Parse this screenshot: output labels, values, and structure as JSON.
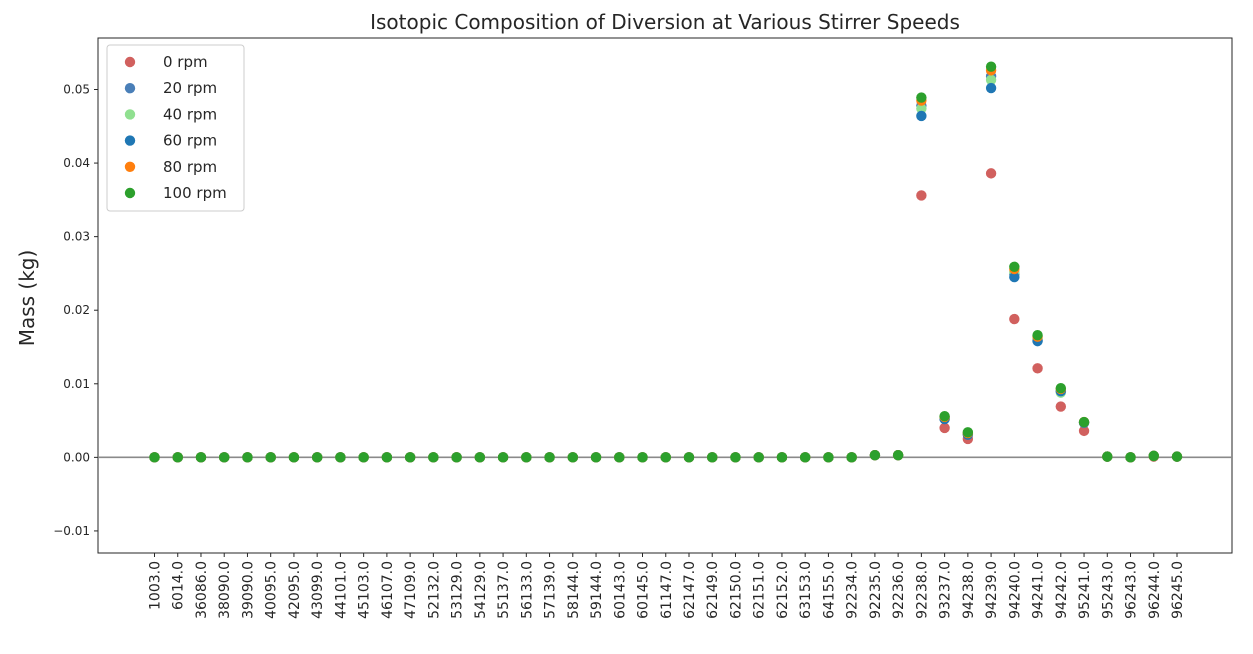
{
  "chart_data": {
    "type": "scatter",
    "title": "Isotopic Composition of Diversion at Various Stirrer Speeds",
    "xlabel": "",
    "ylabel": "Mass (kg)",
    "ylim": [
      -0.013,
      0.057
    ],
    "yticks": [
      -0.01,
      0.0,
      0.01,
      0.02,
      0.03,
      0.04,
      0.05
    ],
    "ytick_labels": [
      "−0.01",
      "0.00",
      "0.01",
      "0.02",
      "0.03",
      "0.04",
      "0.05"
    ],
    "grid": false,
    "zero_line": true,
    "legend_position": "top-left",
    "categories": [
      "1003.0",
      "6014.0",
      "36086.0",
      "38090.0",
      "39090.0",
      "40095.0",
      "42095.0",
      "43099.0",
      "44101.0",
      "45103.0",
      "46107.0",
      "47109.0",
      "52132.0",
      "53129.0",
      "54129.0",
      "55137.0",
      "56133.0",
      "57139.0",
      "58144.0",
      "59144.0",
      "60143.0",
      "60145.0",
      "61147.0",
      "62147.0",
      "62149.0",
      "62150.0",
      "62151.0",
      "62152.0",
      "63153.0",
      "64155.0",
      "92234.0",
      "92235.0",
      "92236.0",
      "92238.0",
      "93237.0",
      "94238.0",
      "94239.0",
      "94240.0",
      "94241.0",
      "94242.0",
      "95241.0",
      "95243.0",
      "96243.0",
      "96244.0",
      "96245.0"
    ],
    "series": [
      {
        "name": "0 rpm",
        "color": "#d1605e",
        "values": [
          0,
          0,
          0,
          0,
          0,
          0,
          0,
          0,
          0,
          0,
          0,
          0,
          0,
          0,
          0,
          0,
          0,
          0,
          0,
          0,
          0,
          0,
          0,
          0,
          0,
          0,
          0,
          0,
          0,
          0,
          0,
          0.0003,
          0.0003,
          0.0356,
          0.004,
          0.0025,
          0.0386,
          0.0188,
          0.0121,
          0.0069,
          0.0036,
          0.0001,
          0,
          0.0001,
          0.0001
        ]
      },
      {
        "name": "20 rpm",
        "color": "#4a7fb8",
        "values": [
          0,
          0,
          0,
          0,
          0,
          0,
          0,
          0,
          0,
          0,
          0,
          0,
          0,
          0,
          0,
          0,
          0,
          0,
          0,
          0,
          0,
          0,
          0,
          0,
          0,
          0,
          0,
          0,
          0,
          0,
          0,
          0.0003,
          0.0003,
          0.0478,
          0.0053,
          0.0031,
          0.0518,
          0.0249,
          0.0159,
          0.009,
          0.0047,
          0.0001,
          0,
          0.0002,
          0.0001
        ]
      },
      {
        "name": "40 rpm",
        "color": "#90e090",
        "values": [
          0,
          0,
          0,
          0,
          0,
          0,
          0,
          0,
          0,
          0,
          0,
          0,
          0,
          0,
          0,
          0,
          0,
          0,
          0,
          0,
          0,
          0,
          0,
          0,
          0,
          0,
          0,
          0,
          0,
          0,
          0,
          0.0003,
          0.0003,
          0.0474,
          0.0054,
          0.0032,
          0.0513,
          0.0252,
          0.0161,
          0.0088,
          0.0047,
          0.0001,
          0,
          0.0002,
          0.0001
        ]
      },
      {
        "name": "60 rpm",
        "color": "#1f77b4",
        "values": [
          0,
          0,
          0,
          0,
          0,
          0,
          0,
          0,
          0,
          0,
          0,
          0,
          0,
          0,
          0,
          0,
          0,
          0,
          0,
          0,
          0,
          0,
          0,
          0,
          0,
          0,
          0,
          0,
          0,
          0,
          0,
          0.0003,
          0.0003,
          0.0464,
          0.0052,
          0.0031,
          0.0502,
          0.0245,
          0.0158,
          0.009,
          0.0047,
          0.0001,
          0,
          0.0002,
          0.0001
        ]
      },
      {
        "name": "80 rpm",
        "color": "#ff7f0e",
        "values": [
          0,
          0,
          0,
          0,
          0,
          0,
          0,
          0,
          0,
          0,
          0,
          0,
          0,
          0,
          0,
          0,
          0,
          0,
          0,
          0,
          0,
          0,
          0,
          0,
          0,
          0,
          0,
          0,
          0,
          0,
          0,
          0.0003,
          0.0003,
          0.0485,
          0.0055,
          0.0033,
          0.0526,
          0.0256,
          0.0164,
          0.0093,
          0.0048,
          0.0001,
          0,
          0.0002,
          0.0001
        ]
      },
      {
        "name": "100 rpm",
        "color": "#2ca02c",
        "values": [
          0,
          0,
          0,
          0,
          0,
          0,
          0,
          0,
          0,
          0,
          0,
          0,
          0,
          0,
          0,
          0,
          0,
          0,
          0,
          0,
          0,
          0,
          0,
          0,
          0,
          0,
          0,
          0,
          0,
          0,
          0,
          0.0003,
          0.0003,
          0.0489,
          0.0056,
          0.0034,
          0.0531,
          0.0259,
          0.0166,
          0.0094,
          0.0048,
          0.0001,
          0,
          0.0002,
          0.0001
        ]
      }
    ]
  }
}
